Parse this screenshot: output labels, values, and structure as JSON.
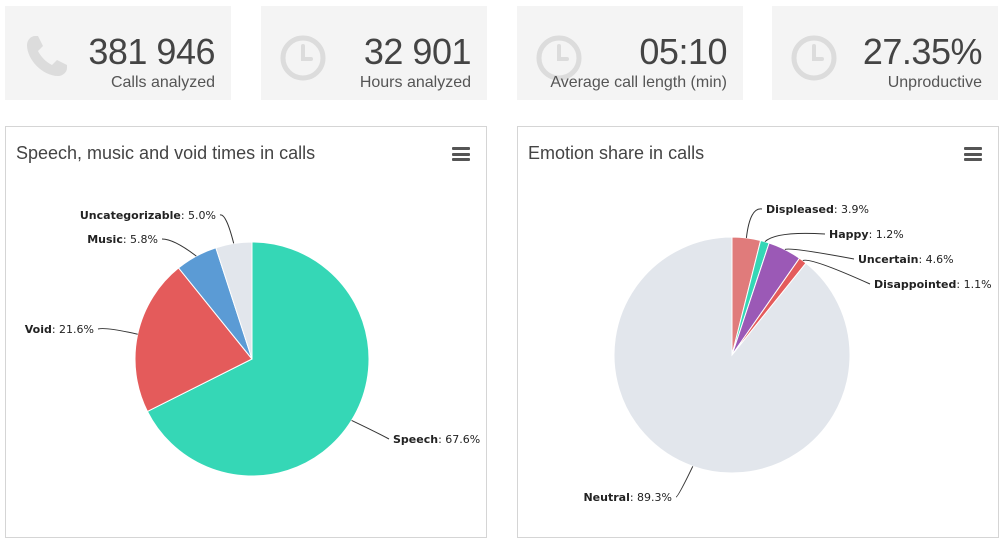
{
  "stats": [
    {
      "value": "381 946",
      "label": "Calls analyzed",
      "icon": "phone-icon"
    },
    {
      "value": "32 901",
      "label": "Hours analyzed",
      "icon": "clock-icon"
    },
    {
      "value": "05:10",
      "label": "Average call length (min)",
      "icon": "clock-icon"
    },
    {
      "value": "27.35%",
      "label": "Unproductive",
      "icon": "clock-icon"
    }
  ],
  "chart_data": [
    {
      "type": "pie",
      "title": "Speech, music and void times in calls",
      "slices": [
        {
          "name": "Speech",
          "value": 67.6,
          "label": "67.6%",
          "color": "#35d7b6"
        },
        {
          "name": "Void",
          "value": 21.6,
          "label": "21.6%",
          "color": "#e45b5b"
        },
        {
          "name": "Music",
          "value": 5.8,
          "label": "5.8%",
          "color": "#5b9bd5"
        },
        {
          "name": "Uncategorizable",
          "value": 5.0,
          "label": "5.0%",
          "color": "#e2e6ec"
        }
      ]
    },
    {
      "type": "pie",
      "title": "Emotion share in calls",
      "slices": [
        {
          "name": "Displeased",
          "value": 3.9,
          "label": "3.9%",
          "color": "#e07b7b"
        },
        {
          "name": "Happy",
          "value": 1.2,
          "label": "1.2%",
          "color": "#35d7b6"
        },
        {
          "name": "Uncertain",
          "value": 4.6,
          "label": "4.6%",
          "color": "#9b59b6"
        },
        {
          "name": "Disappointed",
          "value": 1.1,
          "label": "1.1%",
          "color": "#e45b5b"
        },
        {
          "name": "Neutral",
          "value": 89.3,
          "label": "89.3%",
          "color": "#e2e6ec"
        }
      ]
    }
  ]
}
